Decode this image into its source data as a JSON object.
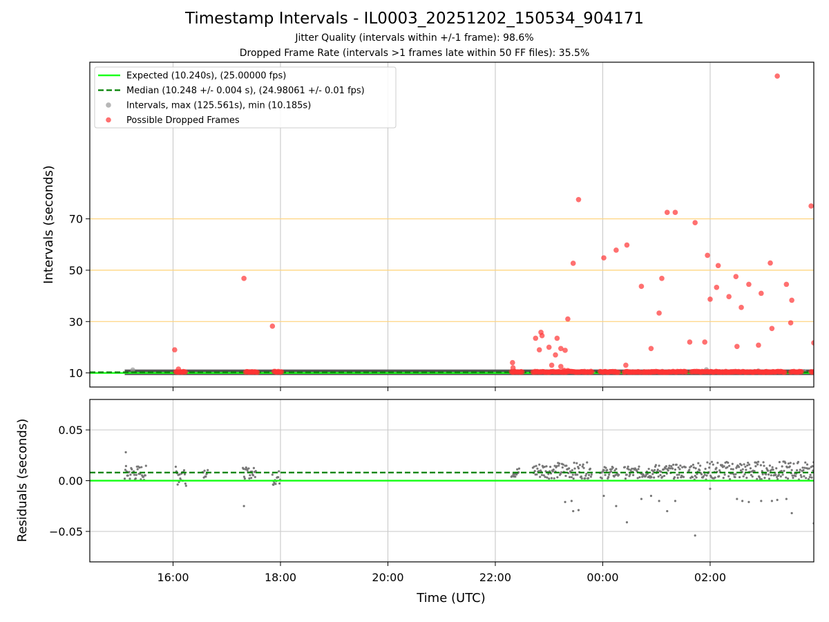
{
  "chart_data": [
    {
      "type": "scatter",
      "title": "Timestamp Intervals - IL0003_20251202_150534_904171",
      "subtitle_1": "Jitter Quality (intervals within +/-1 frame): 98.6%",
      "subtitle_2": "Dropped Frame Rate (intervals >1 frames late within 50 FF files): 35.5%",
      "ylabel": "Intervals (seconds)",
      "xlabel": "",
      "x_unit": "hours since 00:00 UTC of the first day (shown as HH:MM)",
      "xlim": [
        14.45,
        27.93
      ],
      "ylim": [
        4.5,
        131
      ],
      "yticks": [
        10,
        30,
        50,
        70
      ],
      "ytick_labels": [
        "10",
        "30",
        "50",
        "70"
      ],
      "xticks": [
        16,
        18,
        20,
        22,
        24,
        26
      ],
      "reference_lines": [
        30,
        50,
        70
      ],
      "reference_line_color": "#ffd580",
      "grid": "vertical",
      "legend_position": "top-left",
      "legend": [
        {
          "label": "Expected (10.240s), (25.00000 fps)",
          "style": "solid-line",
          "color": "#1aff1a"
        },
        {
          "label": "Median (10.248 +/- 0.004 s), (24.98061 +/- 0.01 fps)",
          "style": "dashed-line",
          "color": "#008000"
        },
        {
          "label": "Intervals, max (125.561s), min (10.185s)",
          "style": "marker",
          "color": "#999999"
        },
        {
          "label": "Possible Dropped Frames",
          "style": "marker",
          "color": "#ff3333"
        }
      ],
      "series": [
        {
          "name": "Expected (10.240s), (25.00000 fps)",
          "type": "hline",
          "value": 10.24,
          "color": "#1aff1a"
        },
        {
          "name": "Median (10.248 +/- 0.004 s), (24.98061 +/- 0.01 fps)",
          "type": "hline",
          "value": 10.248,
          "color": "#008000"
        },
        {
          "name": "Intervals, max (125.561s), min (10.185s)",
          "type": "band",
          "x_range": [
            15.1,
            27.93
          ],
          "value": 10.24,
          "color": "#555555",
          "points": [
            [
              15.25,
              11.2
            ],
            [
              25.93,
              11.3
            ],
            [
              26.9,
              10.8
            ],
            [
              27.75,
              10.6
            ]
          ]
        },
        {
          "name": "Possible Dropped Frames",
          "color": "#ff3333",
          "clusters": [
            [
              16.05,
              16.23
            ],
            [
              17.35,
              17.58
            ],
            [
              17.88,
              18.02
            ],
            [
              22.3,
              22.5
            ],
            [
              22.7,
              23.8
            ],
            [
              23.95,
              24.3
            ],
            [
              24.4,
              24.7
            ],
            [
              24.75,
              25.55
            ],
            [
              25.65,
              27.4
            ],
            [
              27.5,
              27.7
            ],
            [
              27.88,
              27.93
            ]
          ],
          "points": [
            [
              16.03,
              19.0
            ],
            [
              16.1,
              11.5
            ],
            [
              17.32,
              46.8
            ],
            [
              17.85,
              28.2
            ],
            [
              22.32,
              14.0
            ],
            [
              22.33,
              12.0
            ],
            [
              22.75,
              23.5
            ],
            [
              22.82,
              19.0
            ],
            [
              22.85,
              25.8
            ],
            [
              22.87,
              24.5
            ],
            [
              23.0,
              20.0
            ],
            [
              23.05,
              13.0
            ],
            [
              23.12,
              17.0
            ],
            [
              23.15,
              23.5
            ],
            [
              23.22,
              19.5
            ],
            [
              23.22,
              12.5
            ],
            [
              23.28,
              11.0
            ],
            [
              23.3,
              18.8
            ],
            [
              23.35,
              10.9
            ],
            [
              23.35,
              31.0
            ],
            [
              23.45,
              52.7
            ],
            [
              23.55,
              77.5
            ],
            [
              24.02,
              54.8
            ],
            [
              24.25,
              57.8
            ],
            [
              24.43,
              13.0
            ],
            [
              24.45,
              59.8
            ],
            [
              24.72,
              43.7
            ],
            [
              24.9,
              19.5
            ],
            [
              25.05,
              33.3
            ],
            [
              25.1,
              46.8
            ],
            [
              25.2,
              72.5
            ],
            [
              25.35,
              72.5
            ],
            [
              25.62,
              22.0
            ],
            [
              25.72,
              68.5
            ],
            [
              25.9,
              22.0
            ],
            [
              25.95,
              55.8
            ],
            [
              26.0,
              38.7
            ],
            [
              26.12,
              43.3
            ],
            [
              26.15,
              51.8
            ],
            [
              26.35,
              39.7
            ],
            [
              26.48,
              47.5
            ],
            [
              26.5,
              20.3
            ],
            [
              26.58,
              35.5
            ],
            [
              26.72,
              44.5
            ],
            [
              26.9,
              20.8
            ],
            [
              26.95,
              41.0
            ],
            [
              27.12,
              52.8
            ],
            [
              27.15,
              27.3
            ],
            [
              27.25,
              125.6
            ],
            [
              27.42,
              44.5
            ],
            [
              27.5,
              29.5
            ],
            [
              27.52,
              38.3
            ],
            [
              27.88,
              75.0
            ],
            [
              27.93,
              21.7
            ]
          ]
        }
      ]
    },
    {
      "type": "scatter",
      "ylabel": "Residuals (seconds)",
      "xlabel": "Time (UTC)",
      "xlim": [
        14.45,
        27.93
      ],
      "ylim": [
        -0.08,
        0.08
      ],
      "yticks": [
        -0.05,
        0.0,
        0.05
      ],
      "ytick_labels": [
        "−0.05",
        "0.00",
        "0.05"
      ],
      "xticks": [
        16,
        18,
        20,
        22,
        24,
        26
      ],
      "xtick_labels": [
        "16:00",
        "18:00",
        "20:00",
        "22:00",
        "00:00",
        "02:00"
      ],
      "grid": "both",
      "series": [
        {
          "name": "Expected",
          "type": "hline",
          "value": 0.0,
          "color": "#1aff1a"
        },
        {
          "name": "Median",
          "type": "hline",
          "value": 0.008,
          "color": "#008000"
        },
        {
          "name": "Residuals",
          "color": "#777777",
          "clusters": [
            [
              15.1,
              15.5,
              0.0,
              0.015
            ],
            [
              16.05,
              16.25,
              -0.005,
              0.018
            ],
            [
              16.55,
              16.65,
              0.003,
              0.014
            ],
            [
              17.3,
              17.55,
              0.002,
              0.013
            ],
            [
              17.85,
              18.0,
              -0.004,
              0.01
            ],
            [
              22.3,
              22.45,
              0.003,
              0.013
            ],
            [
              22.7,
              23.8,
              0.002,
              0.018
            ],
            [
              23.95,
              24.3,
              0.002,
              0.014
            ],
            [
              24.4,
              24.75,
              0.002,
              0.014
            ],
            [
              24.75,
              25.55,
              0.002,
              0.016
            ],
            [
              25.6,
              27.93,
              0.001,
              0.019
            ]
          ],
          "points": [
            [
              15.12,
              0.028
            ],
            [
              17.32,
              -0.025
            ],
            [
              17.87,
              -0.004
            ],
            [
              23.3,
              -0.021
            ],
            [
              23.45,
              -0.03
            ],
            [
              23.55,
              -0.029
            ],
            [
              23.42,
              -0.02
            ],
            [
              24.02,
              -0.015
            ],
            [
              24.25,
              -0.025
            ],
            [
              24.45,
              -0.041
            ],
            [
              24.72,
              -0.018
            ],
            [
              24.9,
              -0.015
            ],
            [
              25.05,
              -0.02
            ],
            [
              25.2,
              -0.03
            ],
            [
              25.35,
              -0.02
            ],
            [
              25.72,
              -0.054
            ],
            [
              26.0,
              -0.008
            ],
            [
              26.5,
              -0.018
            ],
            [
              26.6,
              -0.02
            ],
            [
              26.72,
              -0.021
            ],
            [
              26.95,
              -0.02
            ],
            [
              27.15,
              -0.02
            ],
            [
              27.25,
              -0.019
            ],
            [
              27.52,
              -0.032
            ],
            [
              27.42,
              -0.018
            ],
            [
              27.93,
              -0.042
            ]
          ]
        }
      ]
    }
  ]
}
